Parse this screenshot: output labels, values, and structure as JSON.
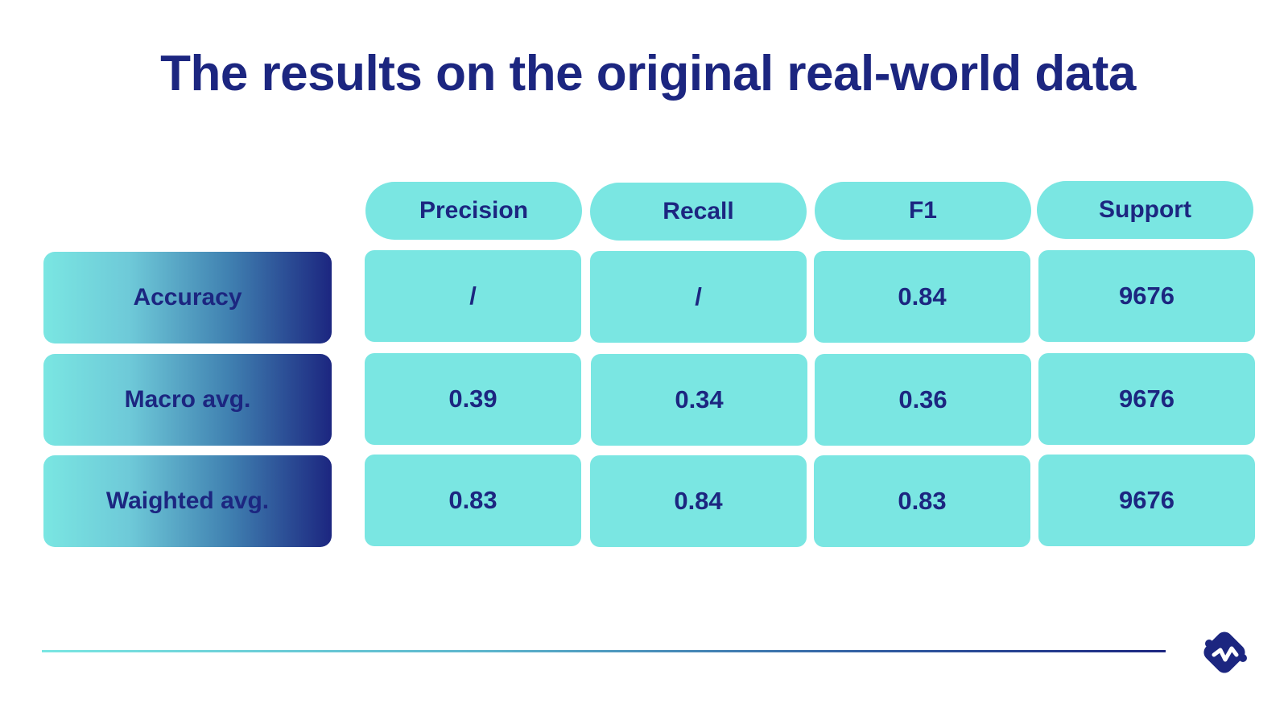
{
  "title": "The results on the original real-world data",
  "colors": {
    "cell": "#7ae6e2",
    "text": "#1c2680",
    "gradient_end": "#1c2680"
  },
  "logo": {
    "icon": "brand-logo-icon"
  },
  "chart_data": {
    "type": "table",
    "title": "The results on the original real-world data",
    "columns": [
      "Precision",
      "Recall",
      "F1",
      "Support"
    ],
    "rows": [
      {
        "label": "Accuracy",
        "values": [
          "/",
          "/",
          "0.84",
          "9676"
        ]
      },
      {
        "label": "Macro avg.",
        "values": [
          "0.39",
          "0.34",
          "0.36",
          "9676"
        ]
      },
      {
        "label": "Waighted avg.",
        "values": [
          "0.83",
          "0.84",
          "0.83",
          "9676"
        ]
      }
    ]
  }
}
